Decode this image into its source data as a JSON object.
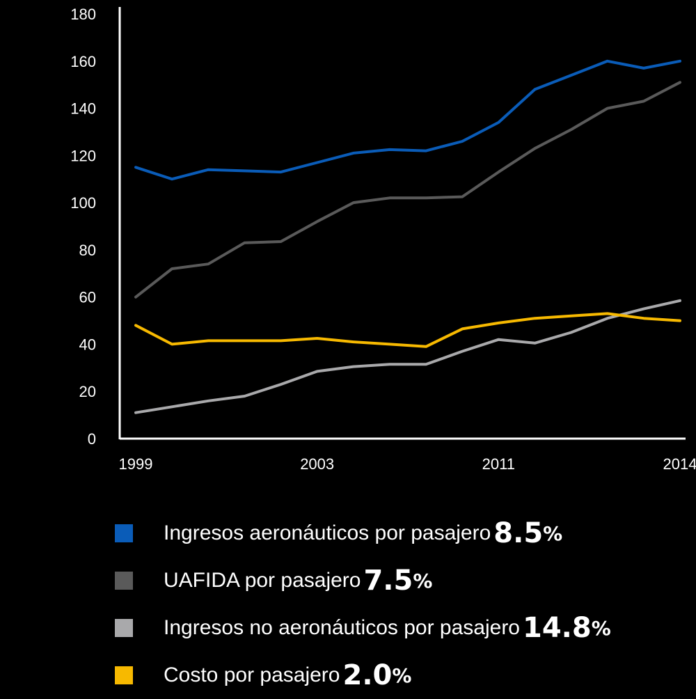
{
  "chart_data": {
    "type": "line",
    "x": [
      1,
      2,
      3,
      4,
      5,
      6,
      7,
      8,
      9,
      10,
      11,
      12,
      13,
      14,
      15,
      16
    ],
    "x_tick_labels": [
      {
        "at": 1,
        "label": "1999"
      },
      {
        "at": 6,
        "label": "2003"
      },
      {
        "at": 11,
        "label": "2011"
      },
      {
        "at": 16,
        "label": "2014"
      }
    ],
    "ylim": [
      0,
      180
    ],
    "yticks": [
      0,
      20,
      40,
      60,
      80,
      100,
      120,
      140,
      160,
      180
    ],
    "grid": false,
    "series": [
      {
        "name": "Ingresos aeronáuticos por pasajero",
        "color": "#0a5cb8",
        "values": [
          115,
          110,
          114,
          113.5,
          113,
          117,
          121,
          122.5,
          122,
          126,
          134,
          148,
          154,
          160,
          157,
          160
        ]
      },
      {
        "name": "UAFIDA por pasajero",
        "color": "#5a5a5a",
        "values": [
          60,
          72,
          74,
          83,
          83.5,
          92,
          100,
          102,
          102,
          102.5,
          113,
          123,
          131,
          140,
          143,
          151
        ]
      },
      {
        "name": "Ingresos no aeronáuticos por pasajero",
        "color": "#a9a9ab",
        "values": [
          11,
          13.5,
          16,
          18,
          23,
          28.5,
          30.5,
          31.5,
          31.5,
          37,
          42,
          40.5,
          45,
          51,
          55,
          58.5
        ]
      },
      {
        "name": "Costo por pasajero",
        "color": "#f7b900",
        "values": [
          48,
          40,
          41.5,
          41.5,
          41.5,
          42.5,
          41,
          40,
          39,
          46.5,
          49,
          51,
          52,
          53,
          51,
          50
        ]
      }
    ]
  },
  "legend": [
    {
      "label": "Ingresos aeronáuticos por pasajero",
      "value": "8.5",
      "pct": "%",
      "color": "#0a5cb8"
    },
    {
      "label": "UAFIDA por pasajero",
      "value": "7.5",
      "pct": "%",
      "color": "#5a5a5a"
    },
    {
      "label": "Ingresos no aeronáuticos por pasajero",
      "value": "14.8",
      "pct": "%",
      "color": "#a9a9ab"
    },
    {
      "label": "Costo por pasajero",
      "value": "2.0",
      "pct": "%",
      "color": "#f7b900"
    }
  ]
}
